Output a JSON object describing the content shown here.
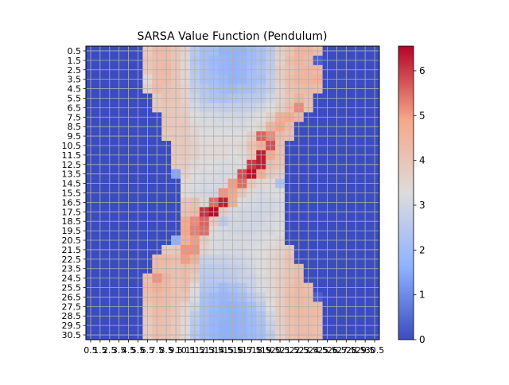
{
  "chart_data": {
    "type": "heatmap",
    "title": "SARSA Value Function (Pendulum)",
    "xlabel": "",
    "ylabel": "",
    "colormap": "coolwarm",
    "grid": true,
    "grid_color": "#b0b0b0",
    "colorbar": {
      "position": "right",
      "range": [
        0,
        6.55
      ],
      "ticks": [
        "0",
        "1",
        "2",
        "3",
        "4",
        "5",
        "6"
      ]
    },
    "x_tick_labels": [
      "0.5",
      "1.5",
      "2.5",
      "3.5",
      "4.5",
      "5.5",
      "6.5",
      "7.5",
      "8.5",
      "9.5",
      "10.5",
      "11.5",
      "12.5",
      "13.5",
      "14.5",
      "15.5",
      "16.5",
      "17.5",
      "18.5",
      "19.5",
      "20.5",
      "21.5",
      "22.5",
      "23.5",
      "24.5",
      "25.5",
      "26.5",
      "27.5",
      "28.5",
      "29.5",
      "30.5"
    ],
    "y_tick_labels": [
      "0.5",
      "1.5",
      "2.5",
      "3.5",
      "4.5",
      "5.5",
      "6.5",
      "7.5",
      "8.5",
      "9.5",
      "10.5",
      "11.5",
      "12.5",
      "13.5",
      "14.5",
      "15.5",
      "16.5",
      "17.5",
      "18.5",
      "19.5",
      "20.5",
      "21.5",
      "22.5",
      "23.5",
      "24.5",
      "25.5",
      "26.5",
      "27.5",
      "28.5",
      "29.5",
      "30.5"
    ],
    "values": [
      [
        0,
        0,
        0,
        0,
        0,
        0,
        3.8,
        4.3,
        4.3,
        4.0,
        3.6,
        2.5,
        2.1,
        2.1,
        1.7,
        1.7,
        1.7,
        2.0,
        2.2,
        2.5,
        3.7,
        4.0,
        4.5,
        4.5,
        4.2,
        0,
        0,
        0,
        0,
        0,
        0
      ],
      [
        0,
        0,
        0,
        0,
        0,
        0,
        4.0,
        4.2,
        4.3,
        4.0,
        3.5,
        2.4,
        2.1,
        1.9,
        1.8,
        1.7,
        1.8,
        2.0,
        2.2,
        2.6,
        3.6,
        4.2,
        4.5,
        4.3,
        0.3,
        0,
        0,
        0,
        0,
        0,
        0
      ],
      [
        0,
        0,
        0,
        0,
        0,
        0,
        3.9,
        4.3,
        4.4,
        4.0,
        3.5,
        2.5,
        2.2,
        2.0,
        1.8,
        1.7,
        1.8,
        2.1,
        2.3,
        2.6,
        3.8,
        4.1,
        4.4,
        4.5,
        4.4,
        0,
        0,
        0,
        0,
        0,
        0
      ],
      [
        0,
        0,
        0,
        0,
        0,
        0,
        3.4,
        4.2,
        4.3,
        4.0,
        3.5,
        2.6,
        2.2,
        2.1,
        1.9,
        1.7,
        1.8,
        2.1,
        2.2,
        2.7,
        3.7,
        4.2,
        4.5,
        4.5,
        4.6,
        0,
        0,
        0,
        0,
        0,
        0
      ],
      [
        0,
        0,
        0,
        0,
        0,
        0,
        3.7,
        4.3,
        4.2,
        4.0,
        3.6,
        2.7,
        2.4,
        2.2,
        2.0,
        1.9,
        2.1,
        2.2,
        2.4,
        2.7,
        3.6,
        4.1,
        4.3,
        4.4,
        4.3,
        0,
        0,
        0,
        0,
        0,
        0
      ],
      [
        0,
        0,
        0,
        0,
        0,
        0,
        0,
        3.8,
        4.1,
        4.0,
        3.6,
        2.9,
        2.5,
        2.3,
        2.2,
        2.3,
        2.4,
        2.5,
        2.6,
        3.0,
        3.6,
        4.0,
        4.5,
        4.2,
        0,
        0,
        0,
        0,
        0,
        0,
        0
      ],
      [
        0,
        0,
        0,
        0,
        0,
        0,
        0,
        3.9,
        4.0,
        3.9,
        3.7,
        3.1,
        2.8,
        2.8,
        2.7,
        2.7,
        2.7,
        2.8,
        3.0,
        3.3,
        3.7,
        4.2,
        5.2,
        4.1,
        0,
        0,
        0,
        0,
        0,
        0,
        0
      ],
      [
        0,
        0,
        0,
        0,
        0,
        0,
        0,
        0,
        4.0,
        3.9,
        3.8,
        3.3,
        3.1,
        3.1,
        3.0,
        3.0,
        3.0,
        3.1,
        3.3,
        3.7,
        4.6,
        4.8,
        4.4,
        0,
        0,
        0,
        0,
        0,
        0,
        0,
        0
      ],
      [
        0,
        0,
        0,
        0,
        0,
        0,
        0,
        0,
        4.0,
        3.9,
        3.9,
        3.5,
        3.2,
        3.2,
        3.2,
        3.1,
        3.1,
        3.3,
        3.5,
        4.5,
        4.9,
        4.3,
        0,
        0,
        0,
        0,
        0,
        0,
        0,
        0,
        0
      ],
      [
        0,
        0,
        0,
        0,
        0,
        0,
        0,
        0,
        3.9,
        3.9,
        3.9,
        3.6,
        3.3,
        3.3,
        3.3,
        3.3,
        3.3,
        3.7,
        5.6,
        5.2,
        4.3,
        4.1,
        0,
        0,
        0,
        0,
        0,
        0,
        0,
        0,
        0
      ],
      [
        0,
        0,
        0,
        0,
        0,
        0,
        0,
        0,
        0,
        3.9,
        3.9,
        3.7,
        3.4,
        3.4,
        3.4,
        3.4,
        3.5,
        4.1,
        4.6,
        5.8,
        4.1,
        0,
        0,
        0,
        0,
        0,
        0,
        0,
        0,
        0,
        0
      ],
      [
        0,
        0,
        0,
        0,
        0,
        0,
        0,
        0,
        0,
        3.9,
        3.9,
        3.7,
        3.4,
        3.4,
        3.4,
        3.3,
        3.4,
        3.9,
        6.3,
        4.8,
        4.1,
        0,
        0,
        0,
        0,
        0,
        0,
        0,
        0,
        0,
        0
      ],
      [
        0,
        0,
        0,
        0,
        0,
        0,
        0,
        0,
        0,
        3.8,
        3.8,
        3.5,
        3.3,
        3.3,
        3.2,
        3.2,
        3.3,
        6.0,
        6.3,
        4.2,
        4.0,
        0,
        0,
        0,
        0,
        0,
        0,
        0,
        0,
        0,
        0
      ],
      [
        0,
        0,
        0,
        0,
        0,
        0,
        0,
        0,
        0,
        1.4,
        3.6,
        3.3,
        3.2,
        3.2,
        3.1,
        3.1,
        5.8,
        6.4,
        4.7,
        3.9,
        3.7,
        0,
        0,
        0,
        0,
        0,
        0,
        0,
        0,
        0,
        0
      ],
      [
        0,
        0,
        0,
        0,
        0,
        0,
        0,
        0,
        0,
        0,
        3.4,
        3.2,
        3.1,
        3.1,
        3.1,
        5.0,
        5.5,
        3.9,
        3.5,
        3.4,
        2.3,
        0,
        0,
        0,
        0,
        0,
        0,
        0,
        0,
        0,
        0
      ],
      [
        0,
        0,
        0,
        0,
        0,
        0,
        0,
        0,
        0,
        0,
        3.4,
        3.1,
        3.0,
        3.0,
        5.1,
        4.9,
        4.0,
        3.4,
        3.1,
        3.2,
        3.3,
        0,
        0,
        0,
        0,
        0,
        0,
        0,
        0,
        0,
        0
      ],
      [
        0,
        0,
        0,
        0,
        0,
        0,
        0,
        0,
        0,
        0,
        4.0,
        4.2,
        3.5,
        5.5,
        6.3,
        4.8,
        3.2,
        3.1,
        3.0,
        3.0,
        3.1,
        0,
        0,
        0,
        0,
        0,
        0,
        0,
        0,
        0,
        0
      ],
      [
        0,
        0,
        0,
        0,
        0,
        0,
        0,
        0,
        0,
        0,
        4.1,
        4.3,
        6.1,
        6.5,
        3.8,
        3.1,
        3.0,
        3.0,
        3.0,
        3.0,
        3.2,
        0,
        0,
        0,
        0,
        0,
        0,
        0,
        0,
        0,
        0
      ],
      [
        0,
        0,
        0,
        0,
        0,
        0,
        0,
        0,
        0,
        0,
        4.8,
        5.2,
        5.6,
        3.9,
        2.6,
        3.0,
        3.0,
        3.0,
        3.0,
        3.1,
        3.2,
        0,
        0,
        0,
        0,
        0,
        0,
        0,
        0,
        0,
        0
      ],
      [
        0,
        0,
        0,
        0,
        0,
        0,
        0,
        0,
        0,
        0,
        4.9,
        5.3,
        5.5,
        3.4,
        3.1,
        3.0,
        3.0,
        3.0,
        3.1,
        3.1,
        3.3,
        0,
        0,
        0,
        0,
        0,
        0,
        0,
        0,
        0,
        0
      ],
      [
        0,
        0,
        0,
        0,
        0,
        0,
        0,
        0,
        0,
        1.6,
        4.6,
        5.0,
        3.8,
        3.2,
        3.1,
        3.1,
        3.1,
        3.1,
        3.2,
        3.3,
        3.5,
        0,
        0,
        0,
        0,
        0,
        0,
        0,
        0,
        0,
        0
      ],
      [
        0,
        0,
        0,
        0,
        0,
        0,
        0,
        0,
        3.9,
        3.9,
        5.1,
        5.1,
        3.6,
        3.2,
        3.1,
        3.1,
        3.1,
        3.2,
        3.3,
        3.4,
        3.6,
        3.9,
        0,
        0,
        0,
        0,
        0,
        0,
        0,
        0,
        0
      ],
      [
        0,
        0,
        0,
        0,
        0,
        0,
        0,
        4.3,
        4.4,
        4.2,
        5.0,
        4.6,
        2.8,
        2.8,
        2.8,
        2.9,
        3.0,
        3.1,
        3.3,
        3.5,
        3.7,
        4.1,
        0,
        0,
        0,
        0,
        0,
        0,
        0,
        0,
        0
      ],
      [
        0,
        0,
        0,
        0,
        0,
        0,
        0,
        4.3,
        4.3,
        4.1,
        4.3,
        4.1,
        2.6,
        2.6,
        2.6,
        2.7,
        2.8,
        3.0,
        3.3,
        3.5,
        3.7,
        4.0,
        4.3,
        0,
        0,
        0,
        0,
        0,
        0,
        0,
        0
      ],
      [
        0,
        0,
        0,
        0,
        0,
        0,
        4.2,
        5.1,
        4.5,
        4.1,
        4.3,
        3.8,
        2.5,
        2.5,
        2.5,
        2.6,
        2.8,
        2.9,
        3.2,
        3.5,
        3.8,
        4.0,
        4.3,
        0,
        0,
        0,
        0,
        0,
        0,
        0,
        0
      ],
      [
        0,
        0,
        0,
        0,
        0,
        0,
        4.3,
        4.6,
        4.4,
        4.1,
        4.2,
        3.4,
        2.4,
        2.3,
        2.0,
        2.2,
        2.4,
        2.8,
        3.2,
        3.5,
        3.8,
        4.1,
        4.4,
        4.2,
        0,
        0,
        0,
        0,
        0,
        0,
        0
      ],
      [
        0,
        0,
        0,
        0,
        0,
        0,
        4.2,
        4.4,
        4.3,
        4.1,
        4.0,
        3.2,
        2.2,
        2.0,
        1.8,
        1.9,
        2.1,
        2.5,
        2.9,
        3.4,
        3.8,
        4.2,
        4.4,
        4.3,
        0.3,
        0,
        0,
        0,
        0,
        0,
        0
      ],
      [
        0,
        0,
        0,
        0,
        0,
        0,
        4.0,
        4.3,
        4.3,
        4.0,
        3.6,
        2.9,
        2.1,
        1.9,
        1.7,
        1.7,
        1.8,
        2.1,
        2.6,
        3.3,
        3.8,
        4.2,
        4.4,
        4.3,
        4.3,
        0,
        0,
        0,
        0,
        0,
        0
      ],
      [
        0,
        0,
        0,
        0,
        0,
        0,
        3.9,
        4.3,
        4.2,
        4.0,
        3.5,
        2.6,
        2.1,
        1.8,
        1.7,
        1.6,
        1.7,
        2.0,
        2.3,
        3.0,
        3.8,
        4.2,
        4.4,
        4.3,
        4.3,
        0,
        0,
        0,
        0,
        0,
        0
      ],
      [
        0,
        0,
        0,
        0,
        0,
        0,
        3.8,
        4.2,
        4.2,
        3.9,
        3.4,
        2.5,
        2.0,
        1.8,
        1.6,
        1.6,
        1.7,
        1.9,
        2.2,
        2.8,
        3.7,
        4.1,
        4.3,
        4.3,
        4.2,
        0,
        0,
        0,
        0,
        0,
        0
      ],
      [
        0,
        0,
        0,
        0,
        0,
        0,
        3.8,
        4.2,
        4.1,
        3.9,
        3.4,
        2.4,
        2.0,
        1.8,
        1.6,
        1.6,
        1.7,
        1.9,
        2.1,
        2.6,
        3.6,
        4.1,
        4.3,
        4.3,
        4.2,
        0,
        0,
        0,
        0,
        0,
        0
      ]
    ]
  }
}
